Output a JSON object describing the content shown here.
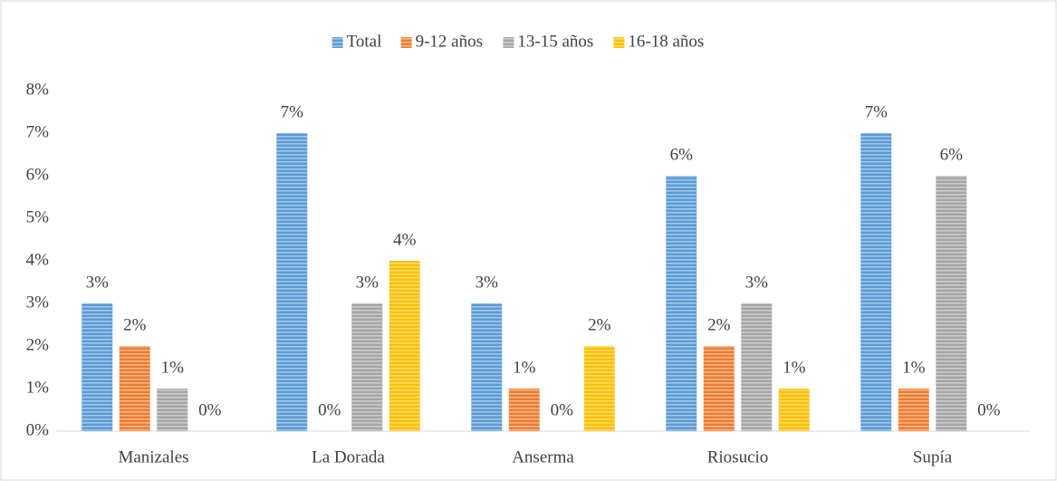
{
  "chart_data": {
    "type": "bar",
    "categories": [
      "Manizales",
      "La Dorada",
      "Anserma",
      "Riosucio",
      "Supía"
    ],
    "series": [
      {
        "name": "Total",
        "color": "#5b9bd5",
        "values": [
          3,
          7,
          3,
          6,
          7
        ],
        "value_labels": [
          "3%",
          "7%",
          "3%",
          "6%",
          "7%"
        ]
      },
      {
        "name": "9-12 años",
        "color": "#ed7d31",
        "values": [
          2,
          0,
          1,
          2,
          1
        ],
        "value_labels": [
          "2%",
          "0%",
          "1%",
          "2%",
          "1%"
        ]
      },
      {
        "name": "13-15 años",
        "color": "#a5a5a5",
        "values": [
          1,
          3,
          0,
          3,
          6
        ],
        "value_labels": [
          "1%",
          "3%",
          "0%",
          "3%",
          "6%"
        ]
      },
      {
        "name": "16-18 años",
        "color": "#ffc000",
        "values": [
          0,
          4,
          2,
          1,
          0
        ],
        "value_labels": [
          "0%",
          "4%",
          "2%",
          "1%",
          "0%"
        ]
      }
    ],
    "ylim": [
      0,
      8
    ],
    "yticks": [
      {
        "value": 0,
        "label": "0%"
      },
      {
        "value": 1,
        "label": "1%"
      },
      {
        "value": 2,
        "label": "2%"
      },
      {
        "value": 3,
        "label": "3%"
      },
      {
        "value": 4,
        "label": "4%"
      },
      {
        "value": 5,
        "label": "5%"
      },
      {
        "value": 6,
        "label": "6%"
      },
      {
        "value": 7,
        "label": "7%"
      },
      {
        "value": 8,
        "label": "8%"
      }
    ],
    "legend": "top"
  }
}
